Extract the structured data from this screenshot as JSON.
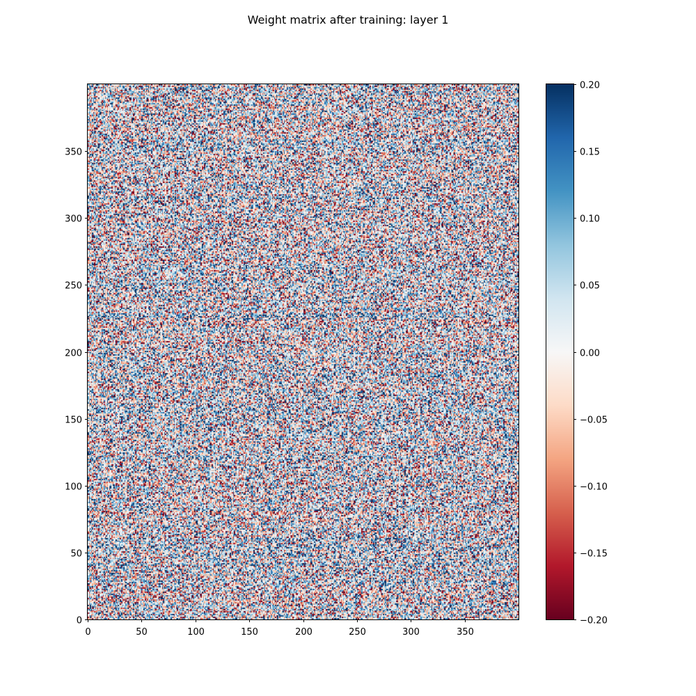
{
  "chart_data": {
    "type": "heatmap",
    "title": "Weight matrix after training: layer 1",
    "xlabel": "",
    "ylabel": "",
    "rows": 400,
    "cols": 400,
    "xlim": [
      0,
      400
    ],
    "ylim": [
      0,
      400
    ],
    "origin": "lower",
    "x_ticks": [
      0,
      50,
      100,
      150,
      200,
      250,
      300,
      350
    ],
    "x_tick_labels": [
      "0",
      "50",
      "100",
      "150",
      "200",
      "250",
      "300",
      "350"
    ],
    "y_ticks": [
      0,
      50,
      100,
      150,
      200,
      250,
      300,
      350
    ],
    "y_tick_labels": [
      "0",
      "50",
      "100",
      "150",
      "200",
      "250",
      "300",
      "350"
    ],
    "value_range": [
      -0.2,
      0.2
    ],
    "colormap": "RdBu",
    "colormap_stops": [
      "#67001f",
      "#b2182b",
      "#d6604d",
      "#f4a582",
      "#fddbc7",
      "#f7f7f7",
      "#d1e5f0",
      "#92c5de",
      "#4393c3",
      "#2166ac",
      "#053061"
    ],
    "colorbar_ticks": [
      -0.2,
      -0.15,
      -0.1,
      -0.05,
      0.0,
      0.05,
      0.1,
      0.15,
      0.2
    ],
    "colorbar_tick_labels": [
      "−0.20",
      "−0.15",
      "−0.10",
      "−0.05",
      "0.00",
      "0.05",
      "0.10",
      "0.15",
      "0.20"
    ],
    "grid": false,
    "values_note": "values: dense random-like weights spanning roughly −0.2 to 0.2, saturating at both ends"
  }
}
